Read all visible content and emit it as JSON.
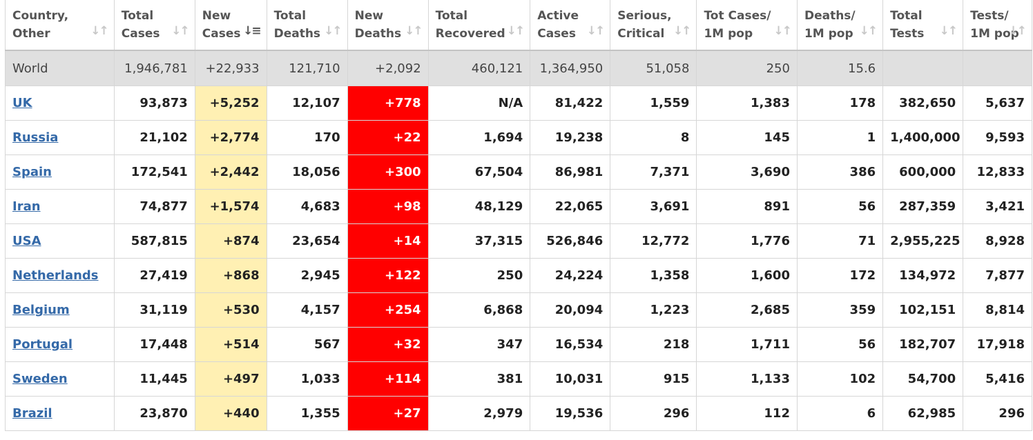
{
  "headers": [
    {
      "line1": "Country,",
      "line2": "Other",
      "sort_icon": "sort-both-icon",
      "active": false
    },
    {
      "line1": "Total",
      "line2": "Cases",
      "sort_icon": "sort-both-icon",
      "active": false
    },
    {
      "line1": "New",
      "line2": "Cases",
      "sort_icon": "sort-descending-icon",
      "active": true
    },
    {
      "line1": "Total",
      "line2": "Deaths",
      "sort_icon": "sort-both-icon",
      "active": false
    },
    {
      "line1": "New",
      "line2": "Deaths",
      "sort_icon": "sort-both-icon",
      "active": false
    },
    {
      "line1": "Total",
      "line2": "Recovered",
      "sort_icon": "sort-both-icon",
      "active": false
    },
    {
      "line1": "Active",
      "line2": "Cases",
      "sort_icon": "sort-both-icon",
      "active": false
    },
    {
      "line1": "Serious,",
      "line2": "Critical",
      "sort_icon": "sort-both-icon",
      "active": false
    },
    {
      "line1": "Tot Cases/",
      "line2": "1M pop",
      "sort_icon": "sort-both-icon",
      "active": false
    },
    {
      "line1": "Deaths/",
      "line2": "1M pop",
      "sort_icon": "sort-both-icon",
      "active": false
    },
    {
      "line1": "Total",
      "line2": "Tests",
      "sort_icon": "sort-both-icon",
      "active": false
    },
    {
      "line1": "Tests/",
      "line2": "1M pop",
      "sort_icon": "sort-both-icon",
      "active": false
    }
  ],
  "world": [
    "World",
    "1,946,781",
    "+22,933",
    "121,710",
    "+2,092",
    "460,121",
    "1,364,950",
    "51,058",
    "250",
    "15.6",
    "",
    ""
  ],
  "rows": [
    [
      "UK",
      "93,873",
      "+5,252",
      "12,107",
      "+778",
      "N/A",
      "81,422",
      "1,559",
      "1,383",
      "178",
      "382,650",
      "5,637"
    ],
    [
      "Russia",
      "21,102",
      "+2,774",
      "170",
      "+22",
      "1,694",
      "19,238",
      "8",
      "145",
      "1",
      "1,400,000",
      "9,593"
    ],
    [
      "Spain",
      "172,541",
      "+2,442",
      "18,056",
      "+300",
      "67,504",
      "86,981",
      "7,371",
      "3,690",
      "386",
      "600,000",
      "12,833"
    ],
    [
      "Iran",
      "74,877",
      "+1,574",
      "4,683",
      "+98",
      "48,129",
      "22,065",
      "3,691",
      "891",
      "56",
      "287,359",
      "3,421"
    ],
    [
      "USA",
      "587,815",
      "+874",
      "23,654",
      "+14",
      "37,315",
      "526,846",
      "12,772",
      "1,776",
      "71",
      "2,955,225",
      "8,928"
    ],
    [
      "Netherlands",
      "27,419",
      "+868",
      "2,945",
      "+122",
      "250",
      "24,224",
      "1,358",
      "1,600",
      "172",
      "134,972",
      "7,877"
    ],
    [
      "Belgium",
      "31,119",
      "+530",
      "4,157",
      "+254",
      "6,868",
      "20,094",
      "1,223",
      "2,685",
      "359",
      "102,151",
      "8,814"
    ],
    [
      "Portugal",
      "17,448",
      "+514",
      "567",
      "+32",
      "347",
      "16,534",
      "218",
      "1,711",
      "56",
      "182,707",
      "17,918"
    ],
    [
      "Sweden",
      "11,445",
      "+497",
      "1,033",
      "+114",
      "381",
      "10,031",
      "915",
      "1,133",
      "102",
      "54,700",
      "5,416"
    ],
    [
      "Brazil",
      "23,870",
      "+440",
      "1,355",
      "+27",
      "2,979",
      "19,536",
      "296",
      "112",
      "6",
      "62,985",
      "296"
    ]
  ],
  "colors": {
    "new_cases_bg": "#fff0b3",
    "new_deaths_bg": "#ff0000",
    "world_row_bg": "#e0e0e0",
    "link": "#3469a8"
  }
}
